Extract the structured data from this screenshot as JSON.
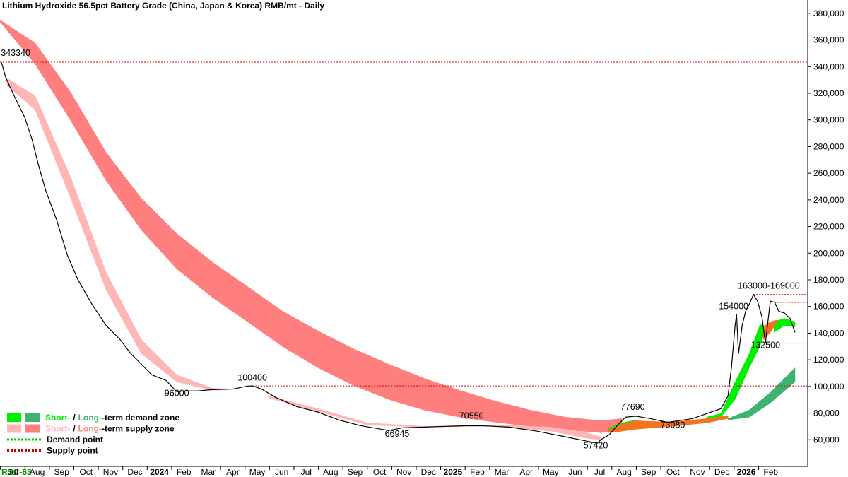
{
  "chart_data": {
    "type": "line",
    "title": "Lithium Hydroxide 56.5pct Battery Grade (China, Japan & Korea) RMB/mt - Daily",
    "footer": "RSC-63",
    "categories": [
      "Jul",
      "Aug",
      "Sep",
      "Oct",
      "Nov",
      "Dec",
      "2024",
      "Feb",
      "Mar",
      "Apr",
      "May",
      "Jun",
      "Jul",
      "Aug",
      "Sep",
      "Oct",
      "Nov",
      "Dec",
      "2025",
      "Feb",
      "Mar",
      "Apr",
      "May",
      "Jun",
      "Jul",
      "Aug",
      "Sep",
      "Oct",
      "Nov",
      "Dec",
      "2026",
      "Feb"
    ],
    "xlim": [
      -0.52,
      32.51
    ],
    "ylim": [
      40000,
      390000
    ],
    "yticks": [
      {
        "value": 60000,
        "label": "60,000"
      },
      {
        "value": 80000,
        "label": "80,000"
      },
      {
        "value": 100000,
        "label": "100,000"
      },
      {
        "value": 120000,
        "label": "120,000"
      },
      {
        "value": 140000,
        "label": "140,000"
      },
      {
        "value": 160000,
        "label": "160,000"
      },
      {
        "value": 180000,
        "label": "180,000"
      },
      {
        "value": 200000,
        "label": "200,000"
      },
      {
        "value": 220000,
        "label": "220,000"
      },
      {
        "value": 240000,
        "label": "240,000"
      },
      {
        "value": 260000,
        "label": "260,000"
      },
      {
        "value": 280000,
        "label": "280,000"
      },
      {
        "value": 300000,
        "label": "300,000"
      },
      {
        "value": 320000,
        "label": "320,000"
      },
      {
        "value": 340000,
        "label": "340,000"
      },
      {
        "value": 360000,
        "label": "360,000"
      },
      {
        "value": 380000,
        "label": "380,000"
      }
    ],
    "bands": [
      {
        "color": "#ff7f7f",
        "x": [
          -0.52,
          0.92,
          2.37,
          3.82,
          5.26,
          6.71,
          8.15,
          9.6,
          11.04,
          12.49,
          13.93,
          15.38,
          16.82,
          18.27,
          19.71,
          21.16,
          22.6,
          24.05,
          24.91
        ],
        "upper": [
          375000,
          357700,
          320700,
          275600,
          241200,
          214700,
          193500,
          175000,
          156400,
          141600,
          128300,
          116700,
          106100,
          97100,
          89100,
          82300,
          77000,
          74300,
          75900
        ],
        "lower": [
          373600,
          341900,
          299500,
          254400,
          217300,
          188200,
          167000,
          148500,
          129900,
          114000,
          100800,
          90200,
          82300,
          77000,
          73200,
          70100,
          67400,
          65300,
          66400
        ]
      },
      {
        "color": "#ffb6b6",
        "x": [
          -0.23,
          0.92,
          2.37,
          3.82,
          5.26,
          6.71,
          8.15,
          9.02
        ],
        "upper": [
          331300,
          318000,
          257100,
          185600,
          135200,
          108700,
          98700,
          98100
        ],
        "lower": [
          326000,
          307400,
          241200,
          172300,
          124600,
          103400,
          97100,
          97600
        ]
      },
      {
        "color": "#ffb6b6",
        "x": [
          10.46,
          12.49,
          14.51,
          16.82,
          19.71,
          22.02,
          23.47,
          24.05
        ],
        "upper": [
          92800,
          83300,
          72700,
          70100,
          71100,
          69500,
          65300,
          62200
        ],
        "lower": [
          91300,
          81200,
          71100,
          69500,
          70100,
          66400,
          61100,
          60000
        ]
      },
      {
        "color": "#3cb371",
        "x": [
          29.25,
          30.12,
          30.98,
          31.99
        ],
        "upper": [
          75900,
          82300,
          95500,
          114000
        ],
        "lower": [
          74800,
          77000,
          87600,
          103400
        ]
      },
      {
        "color": "#00ee00",
        "x": [
          24.34,
          24.91,
          25.49
        ],
        "upper": [
          68500,
          72700,
          74800
        ],
        "lower": [
          66400,
          69500,
          72700
        ]
      },
      {
        "color": "#00ee00",
        "x": [
          28.38,
          28.96,
          29.54,
          30.12,
          30.55,
          30.69
        ],
        "upper": [
          77000,
          79600,
          103400,
          124600,
          145800,
          146900
        ],
        "lower": [
          75900,
          77000,
          90200,
          114000,
          129900,
          137900
        ]
      },
      {
        "color": "#00ee00",
        "x": [
          31.13,
          31.56,
          31.99
        ],
        "upper": [
          148500,
          151100,
          148500
        ],
        "lower": [
          140500,
          145800,
          144800
        ]
      },
      {
        "color": "#f4731f",
        "x": [
          24.34,
          24.91,
          25.49,
          26.94,
          28.38,
          29.25
        ],
        "upper": [
          67400,
          71700,
          74300,
          73200,
          75900,
          78000
        ],
        "lower": [
          65300,
          66400,
          67900,
          70100,
          72700,
          75900
        ]
      },
      {
        "color": "#f4731f",
        "x": [
          30.69,
          30.98,
          31.27
        ],
        "upper": [
          144800,
          148500,
          150000
        ],
        "lower": [
          135200,
          140500,
          148500
        ]
      }
    ],
    "series": [
      {
        "color": "#000000",
        "x": [
          -0.46,
          -0.29,
          0.06,
          0.49,
          0.78,
          1.07,
          1.36,
          1.79,
          2.23,
          2.66,
          3.24,
          3.82,
          4.39,
          4.83,
          5.26,
          5.69,
          6.27,
          6.71,
          6.99,
          7.57,
          8.15,
          9.02,
          9.6,
          9.8,
          10.17,
          10.75,
          11.62,
          12.49,
          13.35,
          14.22,
          15.38,
          15.95,
          16.82,
          18.55,
          19.13,
          20.29,
          21.45,
          22.6,
          23.47,
          23.9,
          24.05,
          24.39,
          24.77,
          25.06,
          25.49,
          26.07,
          26.79,
          27.23,
          27.8,
          28.38,
          28.96,
          29.25,
          29.39,
          29.54,
          29.6,
          29.68,
          29.83,
          29.97,
          30.12,
          30.29,
          30.46,
          30.64,
          30.78,
          30.98,
          31.16,
          31.33,
          31.56,
          31.79,
          31.99
        ],
        "values": [
          343340,
          332000,
          318000,
          302000,
          286000,
          265000,
          246500,
          225300,
          198800,
          180300,
          161700,
          145800,
          135200,
          124600,
          116700,
          108700,
          104500,
          96000,
          96600,
          96600,
          97600,
          98100,
          100300,
          100400,
          98100,
          91800,
          84900,
          80700,
          74800,
          70600,
          66945,
          69000,
          69500,
          70550,
          70600,
          69500,
          66400,
          62200,
          59000,
          57420,
          60000,
          63700,
          71700,
          77000,
          77690,
          75900,
          73080,
          74300,
          75900,
          79600,
          83300,
          92800,
          114000,
          145800,
          154000,
          124600,
          145800,
          156400,
          161700,
          169000,
          164000,
          152000,
          132500,
          164000,
          163000,
          156400,
          155000,
          151000,
          140500
        ]
      }
    ],
    "levels": [
      {
        "value": 343340,
        "x_start": -0.52,
        "color": "#cc0000"
      },
      {
        "value": 100400,
        "x_start": 9.8,
        "color": "#cc0000"
      },
      {
        "value": 169000,
        "x_start": 30.29,
        "color": "#cc0000"
      },
      {
        "value": 163000,
        "x_start": 31.16,
        "color": "#cc0000"
      },
      {
        "value": 132500,
        "x_start": 30.78,
        "color": "#00cc00"
      }
    ],
    "annotations": [
      {
        "text": "343340",
        "x": 0.12,
        "y": 348200
      },
      {
        "text": "96000",
        "x": 6.71,
        "y": 92800
      },
      {
        "text": "100400",
        "x": 9.8,
        "y": 104500
      },
      {
        "text": "66945",
        "x": 15.72,
        "y": 62200
      },
      {
        "text": "70550",
        "x": 18.76,
        "y": 75900
      },
      {
        "text": "57420",
        "x": 23.84,
        "y": 53600
      },
      {
        "text": "77690",
        "x": 25.35,
        "y": 82300
      },
      {
        "text": "73080",
        "x": 26.99,
        "y": 69000
      },
      {
        "text": "154000",
        "x": 29.48,
        "y": 158000
      },
      {
        "text": "163000-169000",
        "x": 30.92,
        "y": 173400
      },
      {
        "text": "132500",
        "x": 30.78,
        "y": 128900
      }
    ],
    "legend": [
      {
        "kind": "zone",
        "short": "Short-",
        "sep": "/",
        "long": "Long-",
        "rest": "-term demand zone",
        "colors": [
          "#00ee00",
          "#3cb371"
        ]
      },
      {
        "kind": "zone",
        "short": "Short-",
        "sep": "/",
        "long": "Long-",
        "rest": "-term supply zone",
        "colors": [
          "#ffb6b6",
          "#ff7f7f"
        ]
      },
      {
        "kind": "point",
        "label": "Demand point",
        "colors": [
          "#00cc00"
        ]
      },
      {
        "kind": "point",
        "label": "Supply point",
        "colors": [
          "#cc0000"
        ]
      }
    ]
  }
}
